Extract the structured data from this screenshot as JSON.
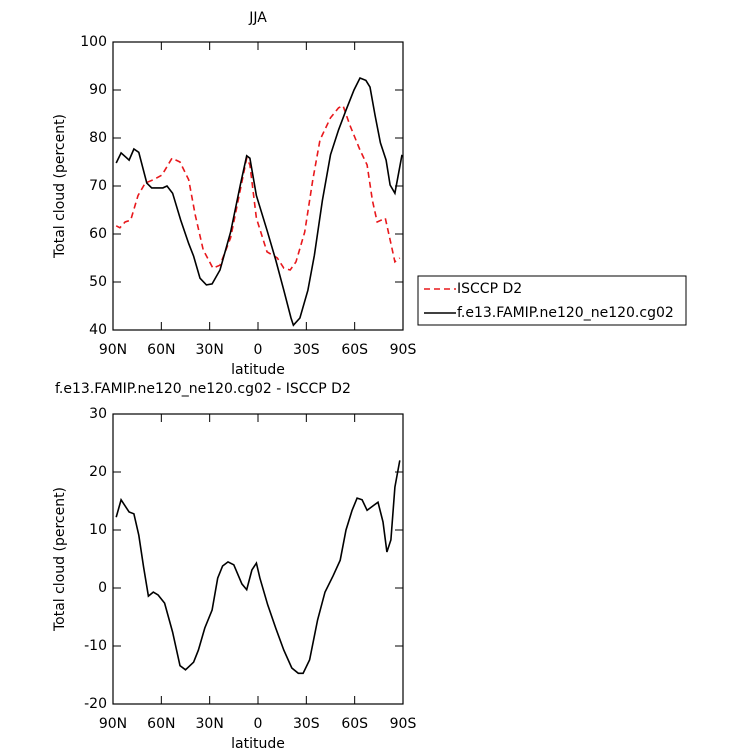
{
  "chart_data": [
    {
      "type": "line",
      "title": "JJA",
      "x_label": "latitude",
      "y_label": "Total cloud (percent)",
      "xlim": [
        90,
        -90
      ],
      "ylim": [
        40,
        100
      ],
      "xticks": [
        {
          "value": 90,
          "label": "90N"
        },
        {
          "value": 60,
          "label": "60N"
        },
        {
          "value": 30,
          "label": "30N"
        },
        0,
        {
          "value": -30,
          "label": "30S"
        },
        {
          "value": -60,
          "label": "60S"
        },
        {
          "value": -90,
          "label": "90S"
        }
      ],
      "yticks": [
        40,
        50,
        60,
        70,
        80,
        90,
        100
      ],
      "legend": "right",
      "series": [
        {
          "name": "ISCCP D2",
          "color": "#e8181c",
          "style": "dashed",
          "x": [
            88,
            85.7,
            82.5,
            79,
            74.5,
            70,
            65,
            59.6,
            53.4,
            48.4,
            43,
            39,
            34,
            28,
            23.6,
            17,
            11,
            7,
            5,
            1,
            -5.6,
            -12,
            -16,
            -20,
            -23.6,
            -29,
            -34,
            -38.5,
            -45,
            -50,
            -52.8,
            -57,
            -63.3,
            -67.7,
            -71,
            -74,
            -79,
            -82,
            -85,
            -88
          ],
          "values": [
            61.7,
            61.3,
            62.5,
            62.9,
            68,
            70.6,
            71.3,
            72.3,
            75.8,
            75,
            71.3,
            64,
            56.7,
            52.9,
            53.5,
            59.2,
            69.2,
            75.8,
            74.4,
            63.3,
            56.3,
            55,
            52.9,
            52.5,
            54.2,
            60.4,
            71.3,
            79.6,
            84.2,
            86.3,
            86.7,
            82.7,
            77.5,
            74.4,
            67,
            62.5,
            63.3,
            58.8,
            54.2,
            55
          ]
        },
        {
          "name": "f.e13.FAMIP.ne120_ne120.cg02",
          "color": "#000000",
          "style": "solid",
          "x": [
            88,
            85,
            80,
            77,
            74,
            69,
            66,
            59,
            56.5,
            53,
            48,
            43,
            40,
            36,
            32,
            28.5,
            23.6,
            17,
            11,
            7,
            5,
            1,
            -5.6,
            -11,
            -16,
            -20.5,
            -22,
            -26,
            -31,
            -35,
            -40,
            -45,
            -50,
            -54.6,
            -59.6,
            -63.3,
            -67,
            -69.5,
            -72.6,
            -76,
            -79.5,
            -82,
            -85,
            -89.4
          ],
          "values": [
            74.8,
            76.9,
            75.4,
            77.7,
            77,
            70.6,
            69.6,
            69.6,
            70,
            68.5,
            62.9,
            58,
            55.4,
            50.8,
            49.4,
            49.6,
            52.5,
            60.4,
            70.2,
            76.3,
            75.8,
            68,
            60.8,
            54.6,
            48.3,
            42.5,
            41,
            42.5,
            48.3,
            55.6,
            67,
            76.5,
            81.7,
            85.8,
            90,
            92.5,
            92,
            90.6,
            84.8,
            79,
            75.4,
            70.2,
            68.5,
            76.5
          ]
        }
      ]
    },
    {
      "type": "line",
      "title": "f.e13.FAMIP.ne120_ne120.cg02 - ISCCP D2",
      "x_label": "latitude",
      "y_label": "Total cloud (percent)",
      "xlim": [
        90,
        -90
      ],
      "ylim": [
        -20,
        30
      ],
      "xticks": [
        {
          "value": 90,
          "label": "90N"
        },
        {
          "value": 60,
          "label": "60N"
        },
        {
          "value": 30,
          "label": "30N"
        },
        0,
        {
          "value": -30,
          "label": "30S"
        },
        {
          "value": -60,
          "label": "60S"
        },
        {
          "value": -90,
          "label": "90S"
        }
      ],
      "yticks": [
        -20,
        -10,
        0,
        10,
        20,
        30
      ],
      "color": "#000000",
      "x": [
        88,
        85,
        80,
        77,
        74,
        71,
        68,
        65,
        62,
        58,
        53,
        48.4,
        45,
        40,
        37,
        33,
        28.5,
        25,
        22,
        18.6,
        15,
        10,
        7,
        3.8,
        1,
        -1.2,
        -6,
        -11,
        -16,
        -21,
        -25,
        -28,
        -32,
        -37,
        -41.6,
        -46.6,
        -51,
        -54.6,
        -58.4,
        -61.5,
        -64.6,
        -67.7,
        -72,
        -74.5,
        -77.6,
        -80,
        -82.5,
        -85,
        -88
      ],
      "values": [
        12.2,
        15.2,
        13.1,
        12.8,
        9.1,
        3.6,
        -1.4,
        -0.7,
        -1.2,
        -2.6,
        -7.6,
        -13.4,
        -14.1,
        -12.8,
        -10.7,
        -6.9,
        -3.8,
        1.7,
        3.8,
        4.5,
        4,
        0.7,
        -0.3,
        3.1,
        4.3,
        1.7,
        -2.9,
        -6.9,
        -10.7,
        -13.8,
        -14.7,
        -14.7,
        -12.4,
        -5.5,
        -0.7,
        2.1,
        4.8,
        10,
        13.4,
        15.5,
        15.2,
        13.4,
        14.3,
        14.8,
        11.4,
        6.2,
        8.3,
        17.4,
        22
      ]
    }
  ]
}
